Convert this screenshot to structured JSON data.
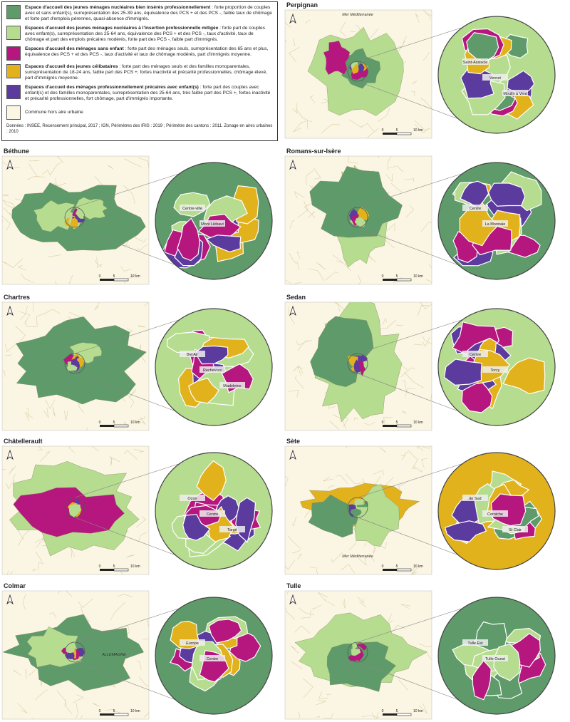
{
  "legend": {
    "items": [
      {
        "title": "Espace d'accueil des jeunes ménages nucléaires bien insérés professionnellement",
        "description": ": forte proportion de couples avec et sans enfant(s), surreprésentation des 25-39 ans, équivalence des PCS + et des PCS -, faible taux de chômage et forte part d'emplois pérennes, quasi-absence d'immigrés.",
        "color": "#5f9a6a"
      },
      {
        "title": "Espaces d'accueil des jeunes ménages nucléaires à l'insertion professionnelle mitigée",
        "description": ": forte part de couples avec enfant(s), surreprésentation des 25-64 ans, équivalence des PCS + et des PCS -, taux d'activité, taux de chômage et part des emplois précaires modérés, forte part des PCS -, faible part d'immigrés.",
        "color": "#b6dc8f"
      },
      {
        "title": "Espaces d'accueil des ménages sans enfant",
        "description": ": forte part des ménages seuls, surreprésentation des 65 ans et plus, équivalence des PCS + et des PCS -, taux d'activité et taux de chômage modérés, part d'immigrés moyenne.",
        "color": "#b5177e"
      },
      {
        "title": "Espaces d'accueil des jeunes célibataires",
        "description": ": forte part des ménages seuls et des familles monoparentales, surreprésentation de 18-24 ans, faible part des PCS +, fortes inactivité et précarité professionnelles, chômage élevé, part d'immigrés moyenne.",
        "color": "#e2b21d"
      },
      {
        "title": "Espaces d'accueil des ménages professionnellement précaires avec enfant(s)",
        "description": ": forte part des couples avec enfant(s) et des familles monoparentales, surreprésentation des 25-64 ans, très faible part des PCS +, fortes inactivité et précarité professionnelles, fort chômage, part d'immigrés importante.",
        "color": "#5c3b9e"
      }
    ],
    "outside": {
      "label": "Commune hors aire urbaine",
      "color": "#fbf6e3"
    },
    "source": "Données : INSEE, Recensement principal, 2017 ; IGN, Périmètres des IRIS : 2019 ; Périmètre des cantons : 2011. Zonage en aires urbaines : 2010"
  },
  "panels": [
    {
      "title": "Perpignan",
      "scale": [
        "0",
        "5",
        "10 km"
      ],
      "place_labels": [
        "Mer Méditerranée"
      ],
      "zoom_labels": [
        "Saint-Assiscle",
        "Vernet",
        "Moulin à Vent"
      ]
    },
    {
      "title": "Béthune",
      "scale": [
        "0",
        "5",
        "10 km"
      ],
      "place_labels": [],
      "zoom_labels": [
        "Centre-ville",
        "Mont Liébaut"
      ]
    },
    {
      "title": "Romans-sur-Isère",
      "scale": [
        "0",
        "5",
        "10 km"
      ],
      "place_labels": [],
      "zoom_labels": [
        "Centre",
        "La Monnaie"
      ]
    },
    {
      "title": "Chartres",
      "scale": [
        "0",
        "5",
        "10 km"
      ],
      "place_labels": [],
      "zoom_labels": [
        "Bel Air",
        "Rechèvres",
        "Madeleine"
      ]
    },
    {
      "title": "Sedan",
      "scale": [
        "0",
        "5",
        "10 km"
      ],
      "place_labels": [],
      "zoom_labels": [
        "Centre",
        "Torcy"
      ]
    },
    {
      "title": "Châtellerault",
      "scale": [
        "0",
        "5",
        "10 km"
      ],
      "place_labels": [],
      "zoom_labels": [
        "Ozon",
        "Centre",
        "Targé"
      ]
    },
    {
      "title": "Sète",
      "scale": [
        "0",
        "5",
        "10 km"
      ],
      "place_labels": [
        "Mer Méditerranée"
      ],
      "zoom_labels": [
        "Ile Sud",
        "Corniche",
        "St Clair"
      ]
    },
    {
      "title": "Colmar",
      "scale": [
        "0",
        "5",
        "10 km"
      ],
      "place_labels": [
        "ALLEMAGNE"
      ],
      "zoom_labels": [
        "Europe",
        "Centre"
      ]
    },
    {
      "title": "Tulle",
      "scale": [
        "0",
        "5",
        "10 km"
      ],
      "place_labels": [],
      "zoom_labels": [
        "Tulle Est",
        "Tulle Ouest"
      ]
    }
  ]
}
